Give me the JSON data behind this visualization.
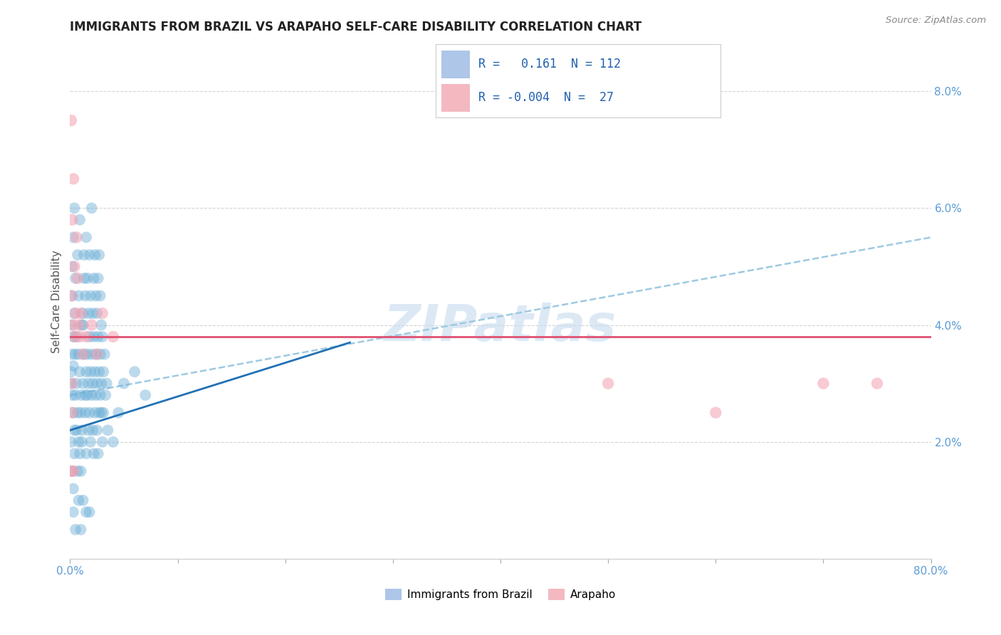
{
  "title": "IMMIGRANTS FROM BRAZIL VS ARAPAHO SELF-CARE DISABILITY CORRELATION CHART",
  "source": "Source: ZipAtlas.com",
  "ylabel": "Self-Care Disability",
  "legend_label1": "Immigrants from Brazil",
  "legend_label2": "Arapaho",
  "R1": "0.161",
  "N1": "112",
  "R2": "-0.004",
  "N2": "27",
  "legend_color1": "#aec6e8",
  "legend_color2": "#f4b8c1",
  "blue_dot_color": "#6baed6",
  "pink_dot_color": "#f4a0b0",
  "blue_line_color": "#2171b5",
  "pink_line_color": "#e05070",
  "dashed_line_color": "#9ecae1",
  "watermark_color": "#c6dbef",
  "xlim": [
    0.0,
    0.8
  ],
  "ylim": [
    0.0,
    0.088
  ],
  "xticks": [
    0.0,
    0.1,
    0.2,
    0.3,
    0.4,
    0.5,
    0.6,
    0.7,
    0.8
  ],
  "xticklabels": [
    "0.0%",
    "",
    "",
    "",
    "",
    "",
    "",
    "",
    "80.0%"
  ],
  "yticks": [
    0.0,
    0.02,
    0.04,
    0.06,
    0.08
  ],
  "yticklabels": [
    "",
    "2.0%",
    "4.0%",
    "6.0%",
    "8.0%"
  ],
  "blue_line_x": [
    0.0,
    0.26
  ],
  "blue_line_y": [
    0.022,
    0.037
  ],
  "pink_line_x": [
    0.0,
    0.8
  ],
  "pink_line_y": [
    0.038,
    0.038
  ],
  "dashed_line_x": [
    0.0,
    0.8
  ],
  "dashed_line_y": [
    0.028,
    0.055
  ],
  "blue_points": [
    [
      0.001,
      0.03
    ],
    [
      0.001,
      0.032
    ],
    [
      0.001,
      0.02
    ],
    [
      0.001,
      0.04
    ],
    [
      0.002,
      0.028
    ],
    [
      0.002,
      0.035
    ],
    [
      0.002,
      0.045
    ],
    [
      0.002,
      0.05
    ],
    [
      0.003,
      0.025
    ],
    [
      0.003,
      0.038
    ],
    [
      0.003,
      0.033
    ],
    [
      0.003,
      0.012
    ],
    [
      0.003,
      0.055
    ],
    [
      0.004,
      0.022
    ],
    [
      0.004,
      0.018
    ],
    [
      0.004,
      0.042
    ],
    [
      0.004,
      0.06
    ],
    [
      0.005,
      0.028
    ],
    [
      0.005,
      0.035
    ],
    [
      0.005,
      0.048
    ],
    [
      0.006,
      0.03
    ],
    [
      0.006,
      0.038
    ],
    [
      0.006,
      0.022
    ],
    [
      0.007,
      0.025
    ],
    [
      0.007,
      0.015
    ],
    [
      0.007,
      0.052
    ],
    [
      0.008,
      0.02
    ],
    [
      0.008,
      0.035
    ],
    [
      0.008,
      0.045
    ],
    [
      0.009,
      0.032
    ],
    [
      0.009,
      0.018
    ],
    [
      0.009,
      0.058
    ],
    [
      0.01,
      0.028
    ],
    [
      0.01,
      0.025
    ],
    [
      0.01,
      0.015
    ],
    [
      0.011,
      0.04
    ],
    [
      0.011,
      0.02
    ],
    [
      0.011,
      0.022
    ],
    [
      0.012,
      0.03
    ],
    [
      0.012,
      0.04
    ],
    [
      0.012,
      0.042
    ],
    [
      0.013,
      0.035
    ],
    [
      0.013,
      0.048
    ],
    [
      0.013,
      0.052
    ],
    [
      0.014,
      0.028
    ],
    [
      0.014,
      0.025
    ],
    [
      0.014,
      0.045
    ],
    [
      0.015,
      0.032
    ],
    [
      0.015,
      0.018
    ],
    [
      0.015,
      0.055
    ],
    [
      0.016,
      0.035
    ],
    [
      0.016,
      0.028
    ],
    [
      0.016,
      0.048
    ],
    [
      0.017,
      0.03
    ],
    [
      0.017,
      0.022
    ],
    [
      0.017,
      0.042
    ],
    [
      0.018,
      0.038
    ],
    [
      0.018,
      0.025
    ],
    [
      0.018,
      0.052
    ],
    [
      0.019,
      0.032
    ],
    [
      0.019,
      0.02
    ],
    [
      0.019,
      0.045
    ],
    [
      0.02,
      0.035
    ],
    [
      0.02,
      0.028
    ],
    [
      0.021,
      0.03
    ],
    [
      0.021,
      0.022
    ],
    [
      0.021,
      0.042
    ],
    [
      0.022,
      0.038
    ],
    [
      0.022,
      0.018
    ],
    [
      0.022,
      0.048
    ],
    [
      0.023,
      0.032
    ],
    [
      0.023,
      0.025
    ],
    [
      0.023,
      0.052
    ],
    [
      0.024,
      0.035
    ],
    [
      0.024,
      0.028
    ],
    [
      0.024,
      0.045
    ],
    [
      0.025,
      0.03
    ],
    [
      0.025,
      0.022
    ],
    [
      0.025,
      0.042
    ],
    [
      0.026,
      0.038
    ],
    [
      0.026,
      0.018
    ],
    [
      0.026,
      0.048
    ],
    [
      0.027,
      0.032
    ],
    [
      0.027,
      0.025
    ],
    [
      0.027,
      0.052
    ],
    [
      0.028,
      0.035
    ],
    [
      0.028,
      0.028
    ],
    [
      0.028,
      0.045
    ],
    [
      0.029,
      0.03
    ],
    [
      0.029,
      0.025
    ],
    [
      0.029,
      0.04
    ],
    [
      0.03,
      0.038
    ],
    [
      0.03,
      0.02
    ],
    [
      0.031,
      0.032
    ],
    [
      0.031,
      0.025
    ],
    [
      0.032,
      0.035
    ],
    [
      0.033,
      0.028
    ],
    [
      0.034,
      0.03
    ],
    [
      0.035,
      0.022
    ],
    [
      0.04,
      0.02
    ],
    [
      0.045,
      0.025
    ],
    [
      0.05,
      0.03
    ],
    [
      0.06,
      0.032
    ],
    [
      0.07,
      0.028
    ],
    [
      0.018,
      0.008
    ],
    [
      0.02,
      0.06
    ],
    [
      0.005,
      0.005
    ],
    [
      0.015,
      0.008
    ],
    [
      0.008,
      0.01
    ],
    [
      0.003,
      0.008
    ],
    [
      0.002,
      0.015
    ],
    [
      0.01,
      0.005
    ],
    [
      0.012,
      0.01
    ]
  ],
  "pink_points": [
    [
      0.001,
      0.075
    ],
    [
      0.001,
      0.045
    ],
    [
      0.002,
      0.058
    ],
    [
      0.002,
      0.03
    ],
    [
      0.003,
      0.065
    ],
    [
      0.003,
      0.04
    ],
    [
      0.004,
      0.05
    ],
    [
      0.004,
      0.038
    ],
    [
      0.005,
      0.042
    ],
    [
      0.006,
      0.055
    ],
    [
      0.007,
      0.048
    ],
    [
      0.008,
      0.04
    ],
    [
      0.009,
      0.038
    ],
    [
      0.01,
      0.042
    ],
    [
      0.012,
      0.035
    ],
    [
      0.015,
      0.038
    ],
    [
      0.02,
      0.04
    ],
    [
      0.025,
      0.035
    ],
    [
      0.03,
      0.042
    ],
    [
      0.04,
      0.038
    ],
    [
      0.5,
      0.03
    ],
    [
      0.6,
      0.025
    ],
    [
      0.7,
      0.03
    ],
    [
      0.75,
      0.03
    ],
    [
      0.003,
      0.015
    ],
    [
      0.001,
      0.015
    ],
    [
      0.002,
      0.025
    ]
  ]
}
